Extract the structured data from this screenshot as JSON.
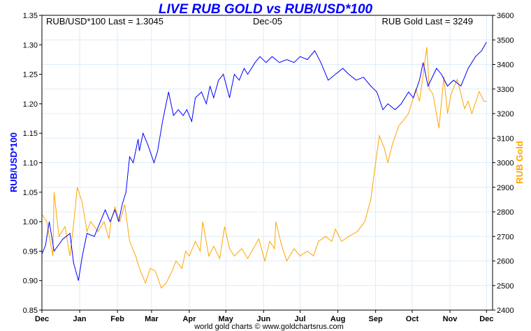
{
  "chart_data": {
    "type": "line",
    "title": "LIVE RUB GOLD vs RUB/USD*100",
    "annotations": {
      "left": "RUB/USD*100 Last = 1.3045",
      "center": "Dec-05",
      "right": "RUB Gold Last = 3249"
    },
    "footer": "world gold charts © www.goldchartsrus.com",
    "ylabel_left": "RUB/USD*100",
    "ylabel_right": "RUB Gold",
    "ylim_left": [
      0.85,
      1.35
    ],
    "ylim_right": [
      2400,
      3600
    ],
    "yticks_left": [
      "0.85",
      "0.90",
      "0.95",
      "1.00",
      "1.05",
      "1.10",
      "1.15",
      "1.20",
      "1.25",
      "1.30",
      "1.35"
    ],
    "yticks_right": [
      "2400",
      "2500",
      "2600",
      "2700",
      "2800",
      "2900",
      "3000",
      "3100",
      "3200",
      "3300",
      "3400",
      "3500",
      "3600"
    ],
    "xlim_days": [
      0,
      370
    ],
    "xticks": [
      {
        "label": "Dec",
        "day": 0
      },
      {
        "label": "Jan",
        "day": 31
      },
      {
        "label": "Feb",
        "day": 62
      },
      {
        "label": "Mar",
        "day": 90
      },
      {
        "label": "Apr",
        "day": 121
      },
      {
        "label": "May",
        "day": 151
      },
      {
        "label": "Jun",
        "day": 182
      },
      {
        "label": "Jul",
        "day": 212
      },
      {
        "label": "Aug",
        "day": 243
      },
      {
        "label": "Sep",
        "day": 274
      },
      {
        "label": "Oct",
        "day": 304
      },
      {
        "label": "Nov",
        "day": 335
      },
      {
        "label": "Dec",
        "day": 365
      }
    ],
    "grid": true,
    "series": [
      {
        "name": "RUB/USD*100",
        "axis": "left",
        "color": "#0000ff",
        "points": [
          [
            0,
            0.945
          ],
          [
            3,
            0.96
          ],
          [
            6,
            1.0
          ],
          [
            10,
            0.95
          ],
          [
            17,
            0.97
          ],
          [
            23,
            0.98
          ],
          [
            26,
            0.93
          ],
          [
            30,
            0.9
          ],
          [
            33,
            0.94
          ],
          [
            37,
            0.98
          ],
          [
            43,
            0.975
          ],
          [
            46,
            0.99
          ],
          [
            52,
            1.02
          ],
          [
            56,
            1.0
          ],
          [
            60,
            1.02
          ],
          [
            63,
            1.0
          ],
          [
            66,
            1.03
          ],
          [
            69,
            1.05
          ],
          [
            72,
            1.11
          ],
          [
            75,
            1.1
          ],
          [
            79,
            1.14
          ],
          [
            80,
            1.12
          ],
          [
            83,
            1.15
          ],
          [
            87,
            1.13
          ],
          [
            92,
            1.1
          ],
          [
            95,
            1.12
          ],
          [
            99,
            1.17
          ],
          [
            102,
            1.2
          ],
          [
            104,
            1.22
          ],
          [
            108,
            1.18
          ],
          [
            112,
            1.19
          ],
          [
            116,
            1.18
          ],
          [
            119,
            1.19
          ],
          [
            123,
            1.17
          ],
          [
            126,
            1.21
          ],
          [
            131,
            1.22
          ],
          [
            135,
            1.2
          ],
          [
            138,
            1.23
          ],
          [
            141,
            1.21
          ],
          [
            145,
            1.24
          ],
          [
            149,
            1.25
          ],
          [
            154,
            1.21
          ],
          [
            158,
            1.25
          ],
          [
            162,
            1.24
          ],
          [
            166,
            1.26
          ],
          [
            169,
            1.25
          ],
          [
            175,
            1.27
          ],
          [
            179,
            1.28
          ],
          [
            184,
            1.27
          ],
          [
            189,
            1.28
          ],
          [
            195,
            1.27
          ],
          [
            201,
            1.275
          ],
          [
            207,
            1.27
          ],
          [
            212,
            1.28
          ],
          [
            218,
            1.275
          ],
          [
            224,
            1.29
          ],
          [
            229,
            1.27
          ],
          [
            235,
            1.24
          ],
          [
            241,
            1.25
          ],
          [
            247,
            1.26
          ],
          [
            252,
            1.25
          ],
          [
            258,
            1.24
          ],
          [
            264,
            1.245
          ],
          [
            270,
            1.23
          ],
          [
            275,
            1.22
          ],
          [
            280,
            1.19
          ],
          [
            284,
            1.2
          ],
          [
            290,
            1.19
          ],
          [
            295,
            1.2
          ],
          [
            301,
            1.22
          ],
          [
            305,
            1.21
          ],
          [
            310,
            1.24
          ],
          [
            313,
            1.27
          ],
          [
            317,
            1.23
          ],
          [
            324,
            1.26
          ],
          [
            328,
            1.25
          ],
          [
            333,
            1.23
          ],
          [
            338,
            1.24
          ],
          [
            344,
            1.23
          ],
          [
            350,
            1.26
          ],
          [
            356,
            1.28
          ],
          [
            361,
            1.29
          ],
          [
            365,
            1.3045
          ]
        ]
      },
      {
        "name": "RUB Gold",
        "axis": "right",
        "color": "#ffa500",
        "points": [
          [
            0,
            2790
          ],
          [
            4,
            2760
          ],
          [
            6,
            2700
          ],
          [
            9,
            2620
          ],
          [
            10,
            2880
          ],
          [
            14,
            2700
          ],
          [
            19,
            2740
          ],
          [
            23,
            2620
          ],
          [
            26,
            2750
          ],
          [
            29,
            2900
          ],
          [
            33,
            2840
          ],
          [
            37,
            2720
          ],
          [
            40,
            2760
          ],
          [
            46,
            2720
          ],
          [
            51,
            2760
          ],
          [
            55,
            2690
          ],
          [
            57,
            2770
          ],
          [
            60,
            2820
          ],
          [
            64,
            2760
          ],
          [
            68,
            2830
          ],
          [
            72,
            2680
          ],
          [
            77,
            2620
          ],
          [
            80,
            2570
          ],
          [
            85,
            2510
          ],
          [
            89,
            2570
          ],
          [
            93,
            2560
          ],
          [
            98,
            2490
          ],
          [
            102,
            2510
          ],
          [
            107,
            2560
          ],
          [
            110,
            2600
          ],
          [
            115,
            2570
          ],
          [
            118,
            2640
          ],
          [
            121,
            2620
          ],
          [
            126,
            2680
          ],
          [
            130,
            2640
          ],
          [
            132,
            2760
          ],
          [
            137,
            2620
          ],
          [
            141,
            2660
          ],
          [
            146,
            2610
          ],
          [
            150,
            2740
          ],
          [
            154,
            2650
          ],
          [
            158,
            2620
          ],
          [
            164,
            2650
          ],
          [
            169,
            2610
          ],
          [
            178,
            2690
          ],
          [
            183,
            2600
          ],
          [
            187,
            2680
          ],
          [
            191,
            2650
          ],
          [
            192,
            2760
          ],
          [
            197,
            2660
          ],
          [
            201,
            2600
          ],
          [
            207,
            2650
          ],
          [
            212,
            2620
          ],
          [
            218,
            2640
          ],
          [
            223,
            2620
          ],
          [
            227,
            2680
          ],
          [
            233,
            2700
          ],
          [
            238,
            2680
          ],
          [
            241,
            2730
          ],
          [
            246,
            2680
          ],
          [
            252,
            2700
          ],
          [
            259,
            2720
          ],
          [
            265,
            2760
          ],
          [
            270,
            2850
          ],
          [
            274,
            3000
          ],
          [
            277,
            3110
          ],
          [
            281,
            3060
          ],
          [
            284,
            3000
          ],
          [
            288,
            3080
          ],
          [
            293,
            3150
          ],
          [
            298,
            3180
          ],
          [
            301,
            3200
          ],
          [
            307,
            3300
          ],
          [
            310,
            3250
          ],
          [
            316,
            3470
          ],
          [
            318,
            3300
          ],
          [
            321,
            3280
          ],
          [
            326,
            3140
          ],
          [
            330,
            3350
          ],
          [
            333,
            3200
          ],
          [
            336,
            3280
          ],
          [
            341,
            3340
          ],
          [
            347,
            3220
          ],
          [
            350,
            3250
          ],
          [
            353,
            3200
          ],
          [
            359,
            3290
          ],
          [
            363,
            3250
          ],
          [
            365,
            3249
          ]
        ]
      }
    ]
  }
}
